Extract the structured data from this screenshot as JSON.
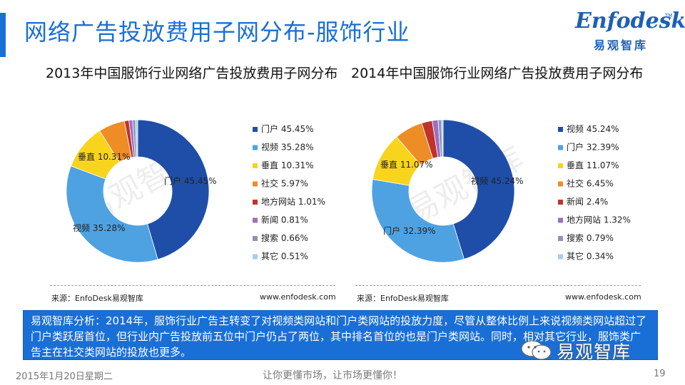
{
  "page": {
    "title": "网络广告投放费用子网分布-服饰行业",
    "logo_text": "Enfodesk",
    "logo_tm": "TM",
    "logo_sub": "易观智库",
    "watermark": "易观智库",
    "analysis": "易观智库分析：2014年，服饰行业广告主转变了对视频类网站和门户类网站的投放力度，尽管从整体比例上来说视频类网站超过了门户类跃居首位，但行业内广告投放前五位中门户仍占了两位，其中排名首位的也是门户类网站。同时，相对其它行业，服饰类广告主在社交类网站的投放也更多。",
    "wechat_label": "易观智库",
    "footer_date": "2015年1月20日星期二",
    "footer_slogan": "让你更懂市场，让市场更懂你！",
    "page_number": "19"
  },
  "chart_data": [
    {
      "type": "pie",
      "title": "2013年中国服饰行业网络广告投放费用子网分布",
      "source_left": "来源：EnfoDesk易观智库",
      "source_right": "www.enfodesk.com",
      "slices": [
        {
          "label": "门户",
          "value": 45.45,
          "display": "45.45%",
          "color": "#1f4ea8",
          "legend": "门户 45.45%",
          "data_label": "门户 45.45%"
        },
        {
          "label": "视频",
          "value": 35.28,
          "display": "35.28%",
          "color": "#4ea2e2",
          "legend": "视频 35.28%",
          "data_label": "视频 35.28%"
        },
        {
          "label": "垂直",
          "value": 10.31,
          "display": "10.31%",
          "color": "#f8d41c",
          "legend": "垂直 10.31%",
          "data_label": "垂直 10.31%"
        },
        {
          "label": "社交",
          "value": 5.97,
          "display": "5.97%",
          "color": "#ee8c25",
          "legend": "社交 5.97%"
        },
        {
          "label": "地方网站",
          "value": 1.01,
          "display": "1.01%",
          "color": "#c0322b",
          "legend": "地方网站 1.01%"
        },
        {
          "label": "新闻",
          "value": 0.81,
          "display": "0.81%",
          "color": "#9b6fc4",
          "legend": "新闻 0.81%"
        },
        {
          "label": "搜索",
          "value": 0.66,
          "display": "0.66%",
          "color": "#8d94b8",
          "legend": "搜索 0.66%"
        },
        {
          "label": "其它",
          "value": 0.51,
          "display": "0.51%",
          "color": "#a6cdee",
          "legend": "其它 0.51%"
        }
      ]
    },
    {
      "type": "pie",
      "title": "2014年中国服饰行业网络广告投放费用子网分布",
      "source_left": "来源：EnfoDesk易观智库",
      "source_right": "www.enfodesk.com",
      "slices": [
        {
          "label": "视频",
          "value": 45.24,
          "display": "45.24%",
          "color": "#1f4ea8",
          "legend": "视频 45.24%",
          "data_label": "视频 45.24%"
        },
        {
          "label": "门户",
          "value": 32.39,
          "display": "32.39%",
          "color": "#4ea2e2",
          "legend": "门户 32.39%",
          "data_label": "门户 32.39%"
        },
        {
          "label": "垂直",
          "value": 11.07,
          "display": "11.07%",
          "color": "#f8d41c",
          "legend": "垂直 11.07%",
          "data_label": "垂直 11.07%"
        },
        {
          "label": "社交",
          "value": 6.45,
          "display": "6.45%",
          "color": "#ee8c25",
          "legend": "社交 6.45%"
        },
        {
          "label": "新闻",
          "value": 2.4,
          "display": "2.4%",
          "color": "#c0322b",
          "legend": "新闻 2.4%"
        },
        {
          "label": "地方网站",
          "value": 1.32,
          "display": "1.32%",
          "color": "#9b6fc4",
          "legend": "地方网站 1.32%"
        },
        {
          "label": "搜索",
          "value": 0.79,
          "display": "0.79%",
          "color": "#8d94b8",
          "legend": "搜索 0.79%"
        },
        {
          "label": "其它",
          "value": 0.34,
          "display": "0.34%",
          "color": "#a6cdee",
          "legend": "其它 0.34%"
        }
      ]
    }
  ]
}
